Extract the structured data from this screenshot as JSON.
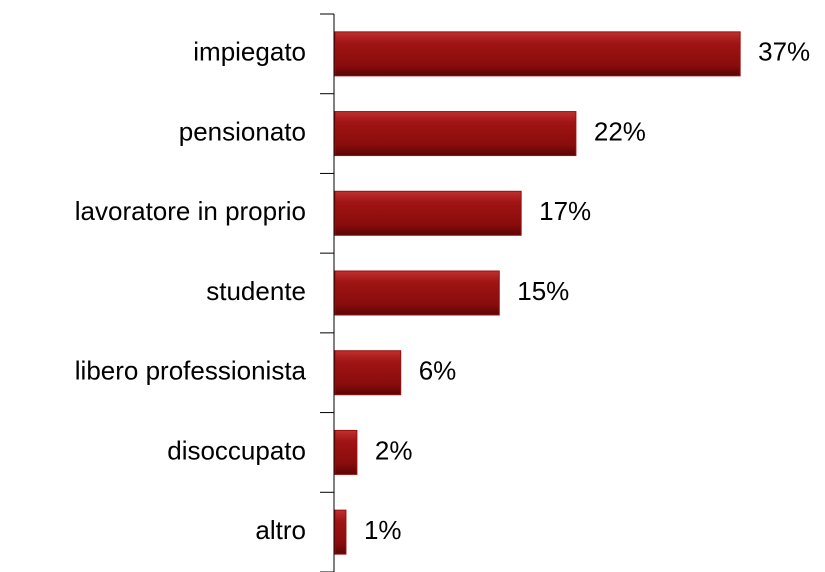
{
  "chart_data": {
    "type": "bar",
    "orientation": "horizontal",
    "categories": [
      "impiegato",
      "pensionato",
      "lavoratore in proprio",
      "studente",
      "libero professionista",
      "disoccupato",
      "altro"
    ],
    "values": [
      37,
      22,
      17,
      15,
      6,
      2,
      1
    ],
    "value_labels": [
      "37%",
      "22%",
      "17%",
      "15%",
      "6%",
      "2%",
      "1%"
    ],
    "color": "#9b0f0f"
  }
}
